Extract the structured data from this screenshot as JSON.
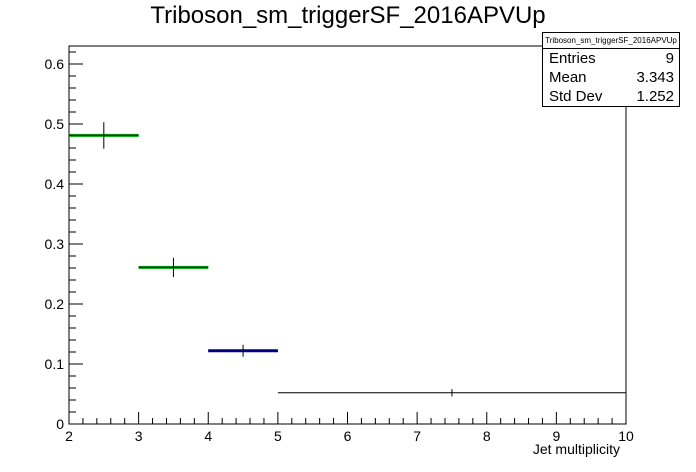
{
  "chart_data": {
    "type": "histogram",
    "title": "Triboson_sm_triggerSF_2016APVUp",
    "xlabel": "Jet multiplicity",
    "ylabel": "",
    "xlim": [
      2,
      10
    ],
    "ylim": [
      0,
      0.63
    ],
    "xticks": [
      "2",
      "3",
      "4",
      "5",
      "6",
      "7",
      "8",
      "9",
      "10"
    ],
    "yticks": [
      "0",
      "0.1",
      "0.2",
      "0.3",
      "0.4",
      "0.5",
      "0.6"
    ],
    "bins": [
      {
        "xlow": 2,
        "xhigh": 3,
        "center": 2.5,
        "value": 0.481,
        "error": 0.022,
        "color": "#00a000"
      },
      {
        "xlow": 3,
        "xhigh": 4,
        "center": 3.5,
        "value": 0.261,
        "error": 0.016,
        "color": "#00a000"
      },
      {
        "xlow": 4,
        "xhigh": 5,
        "center": 4.5,
        "value": 0.122,
        "error": 0.01,
        "color": "#000080"
      },
      {
        "xlow": 5,
        "xhigh": 10,
        "center": 7.5,
        "value": 0.052,
        "error": 0.006,
        "color": "#000000"
      }
    ],
    "grid": false
  },
  "stats": {
    "title": "Triboson_sm_triggerSF_2016APVUp",
    "rows": [
      {
        "label": "Entries",
        "value": "9"
      },
      {
        "label": "Mean",
        "value": "3.343"
      },
      {
        "label": "Std Dev",
        "value": "1.252"
      }
    ]
  }
}
